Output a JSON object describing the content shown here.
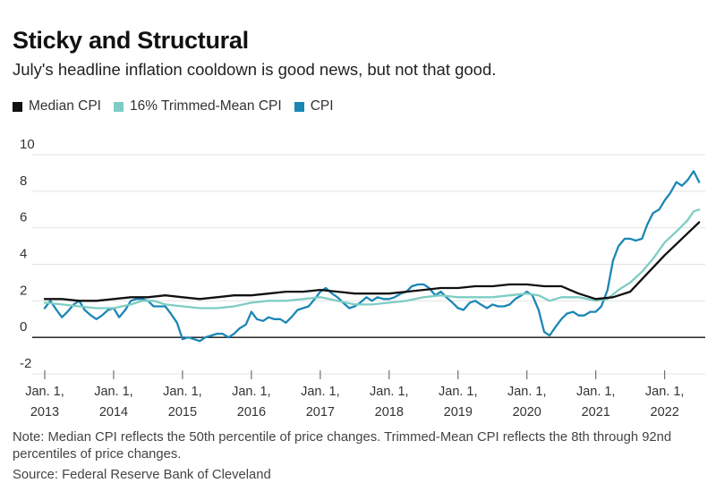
{
  "chart_data": {
    "type": "line",
    "title": "Sticky and Structural",
    "subtitle": "July's headline inflation cooldown is good news, but not that good.",
    "xlabel": "",
    "ylabel": "",
    "ylim": [
      -2,
      10
    ],
    "yticks": [
      "10",
      "8",
      "6",
      "4",
      "2",
      "0",
      "-2"
    ],
    "ytick_values": [
      10,
      8,
      6,
      4,
      2,
      0,
      -2
    ],
    "xlim": [
      2013.0,
      2022.55
    ],
    "xticks": [
      {
        "line1": "Jan. 1,",
        "line2": "2013",
        "value": 2013
      },
      {
        "line1": "Jan. 1,",
        "line2": "2014",
        "value": 2014
      },
      {
        "line1": "Jan. 1,",
        "line2": "2015",
        "value": 2015
      },
      {
        "line1": "Jan. 1,",
        "line2": "2016",
        "value": 2016
      },
      {
        "line1": "Jan. 1,",
        "line2": "2017",
        "value": 2017
      },
      {
        "line1": "Jan. 1,",
        "line2": "2018",
        "value": 2018
      },
      {
        "line1": "Jan. 1,",
        "line2": "2019",
        "value": 2019
      },
      {
        "line1": "Jan. 1,",
        "line2": "2020",
        "value": 2020
      },
      {
        "line1": "Jan. 1,",
        "line2": "2021",
        "value": 2021
      },
      {
        "line1": "Jan. 1,",
        "line2": "2022",
        "value": 2022
      }
    ],
    "legend_position": "top-left",
    "series": [
      {
        "name": "CPI",
        "legend_label": "CPI",
        "color": "#1a87b5",
        "points": [
          [
            2013.0,
            1.6
          ],
          [
            2013.08,
            2.0
          ],
          [
            2013.17,
            1.5
          ],
          [
            2013.25,
            1.1
          ],
          [
            2013.33,
            1.4
          ],
          [
            2013.42,
            1.8
          ],
          [
            2013.5,
            2.0
          ],
          [
            2013.58,
            1.5
          ],
          [
            2013.67,
            1.2
          ],
          [
            2013.75,
            1.0
          ],
          [
            2013.83,
            1.2
          ],
          [
            2013.92,
            1.5
          ],
          [
            2014.0,
            1.6
          ],
          [
            2014.08,
            1.1
          ],
          [
            2014.17,
            1.5
          ],
          [
            2014.25,
            2.0
          ],
          [
            2014.33,
            2.1
          ],
          [
            2014.42,
            2.1
          ],
          [
            2014.5,
            2.0
          ],
          [
            2014.58,
            1.7
          ],
          [
            2014.67,
            1.7
          ],
          [
            2014.75,
            1.7
          ],
          [
            2014.83,
            1.3
          ],
          [
            2014.92,
            0.8
          ],
          [
            2015.0,
            -0.1
          ],
          [
            2015.08,
            0.0
          ],
          [
            2015.17,
            -0.1
          ],
          [
            2015.25,
            -0.2
          ],
          [
            2015.33,
            0.0
          ],
          [
            2015.42,
            0.1
          ],
          [
            2015.5,
            0.2
          ],
          [
            2015.58,
            0.2
          ],
          [
            2015.67,
            0.0
          ],
          [
            2015.75,
            0.2
          ],
          [
            2015.83,
            0.5
          ],
          [
            2015.92,
            0.7
          ],
          [
            2016.0,
            1.4
          ],
          [
            2016.08,
            1.0
          ],
          [
            2016.17,
            0.9
          ],
          [
            2016.25,
            1.1
          ],
          [
            2016.33,
            1.0
          ],
          [
            2016.42,
            1.0
          ],
          [
            2016.5,
            0.8
          ],
          [
            2016.58,
            1.1
          ],
          [
            2016.67,
            1.5
          ],
          [
            2016.75,
            1.6
          ],
          [
            2016.83,
            1.7
          ],
          [
            2016.92,
            2.1
          ],
          [
            2017.0,
            2.5
          ],
          [
            2017.08,
            2.7
          ],
          [
            2017.17,
            2.4
          ],
          [
            2017.25,
            2.2
          ],
          [
            2017.33,
            1.9
          ],
          [
            2017.42,
            1.6
          ],
          [
            2017.5,
            1.7
          ],
          [
            2017.58,
            1.9
          ],
          [
            2017.67,
            2.2
          ],
          [
            2017.75,
            2.0
          ],
          [
            2017.83,
            2.2
          ],
          [
            2017.92,
            2.1
          ],
          [
            2018.0,
            2.1
          ],
          [
            2018.08,
            2.2
          ],
          [
            2018.17,
            2.4
          ],
          [
            2018.25,
            2.5
          ],
          [
            2018.33,
            2.8
          ],
          [
            2018.42,
            2.9
          ],
          [
            2018.5,
            2.9
          ],
          [
            2018.58,
            2.7
          ],
          [
            2018.67,
            2.3
          ],
          [
            2018.75,
            2.5
          ],
          [
            2018.83,
            2.2
          ],
          [
            2018.92,
            1.9
          ],
          [
            2019.0,
            1.6
          ],
          [
            2019.08,
            1.5
          ],
          [
            2019.17,
            1.9
          ],
          [
            2019.25,
            2.0
          ],
          [
            2019.33,
            1.8
          ],
          [
            2019.42,
            1.6
          ],
          [
            2019.5,
            1.8
          ],
          [
            2019.58,
            1.7
          ],
          [
            2019.67,
            1.7
          ],
          [
            2019.75,
            1.8
          ],
          [
            2019.83,
            2.1
          ],
          [
            2019.92,
            2.3
          ],
          [
            2020.0,
            2.5
          ],
          [
            2020.08,
            2.3
          ],
          [
            2020.17,
            1.5
          ],
          [
            2020.25,
            0.3
          ],
          [
            2020.33,
            0.1
          ],
          [
            2020.42,
            0.6
          ],
          [
            2020.5,
            1.0
          ],
          [
            2020.58,
            1.3
          ],
          [
            2020.67,
            1.4
          ],
          [
            2020.75,
            1.2
          ],
          [
            2020.83,
            1.2
          ],
          [
            2020.92,
            1.4
          ],
          [
            2021.0,
            1.4
          ],
          [
            2021.08,
            1.7
          ],
          [
            2021.17,
            2.6
          ],
          [
            2021.25,
            4.2
          ],
          [
            2021.33,
            5.0
          ],
          [
            2021.42,
            5.4
          ],
          [
            2021.5,
            5.4
          ],
          [
            2021.58,
            5.3
          ],
          [
            2021.67,
            5.4
          ],
          [
            2021.75,
            6.2
          ],
          [
            2021.83,
            6.8
          ],
          [
            2021.92,
            7.0
          ],
          [
            2022.0,
            7.5
          ],
          [
            2022.08,
            7.9
          ],
          [
            2022.17,
            8.5
          ],
          [
            2022.25,
            8.3
          ],
          [
            2022.33,
            8.6
          ],
          [
            2022.42,
            9.1
          ],
          [
            2022.5,
            8.5
          ]
        ]
      },
      {
        "name": "16% Trimmed-Mean CPI",
        "legend_label": "16% Trimmed-Mean CPI",
        "color": "#7ecdc4",
        "points": [
          [
            2013.0,
            1.9
          ],
          [
            2013.25,
            1.8
          ],
          [
            2013.5,
            1.7
          ],
          [
            2013.75,
            1.6
          ],
          [
            2014.0,
            1.6
          ],
          [
            2014.25,
            1.8
          ],
          [
            2014.42,
            2.0
          ],
          [
            2014.58,
            2.0
          ],
          [
            2014.75,
            1.8
          ],
          [
            2015.0,
            1.7
          ],
          [
            2015.25,
            1.6
          ],
          [
            2015.5,
            1.6
          ],
          [
            2015.75,
            1.7
          ],
          [
            2016.0,
            1.9
          ],
          [
            2016.25,
            2.0
          ],
          [
            2016.5,
            2.0
          ],
          [
            2016.75,
            2.1
          ],
          [
            2017.0,
            2.2
          ],
          [
            2017.25,
            2.0
          ],
          [
            2017.5,
            1.8
          ],
          [
            2017.75,
            1.8
          ],
          [
            2018.0,
            1.9
          ],
          [
            2018.25,
            2.0
          ],
          [
            2018.5,
            2.2
          ],
          [
            2018.75,
            2.3
          ],
          [
            2019.0,
            2.2
          ],
          [
            2019.25,
            2.2
          ],
          [
            2019.5,
            2.2
          ],
          [
            2019.75,
            2.3
          ],
          [
            2020.0,
            2.4
          ],
          [
            2020.17,
            2.3
          ],
          [
            2020.33,
            2.0
          ],
          [
            2020.5,
            2.2
          ],
          [
            2020.75,
            2.2
          ],
          [
            2021.0,
            2.0
          ],
          [
            2021.17,
            2.1
          ],
          [
            2021.33,
            2.6
          ],
          [
            2021.5,
            3.0
          ],
          [
            2021.67,
            3.6
          ],
          [
            2021.83,
            4.3
          ],
          [
            2022.0,
            5.2
          ],
          [
            2022.17,
            5.8
          ],
          [
            2022.33,
            6.4
          ],
          [
            2022.42,
            6.9
          ],
          [
            2022.5,
            7.0
          ]
        ]
      },
      {
        "name": "Median CPI",
        "legend_label": "Median CPI",
        "color": "#111111",
        "points": [
          [
            2013.0,
            2.1
          ],
          [
            2013.25,
            2.1
          ],
          [
            2013.5,
            2.0
          ],
          [
            2013.75,
            2.0
          ],
          [
            2014.0,
            2.1
          ],
          [
            2014.25,
            2.2
          ],
          [
            2014.5,
            2.2
          ],
          [
            2014.75,
            2.3
          ],
          [
            2015.0,
            2.2
          ],
          [
            2015.25,
            2.1
          ],
          [
            2015.5,
            2.2
          ],
          [
            2015.75,
            2.3
          ],
          [
            2016.0,
            2.3
          ],
          [
            2016.25,
            2.4
          ],
          [
            2016.5,
            2.5
          ],
          [
            2016.75,
            2.5
          ],
          [
            2017.0,
            2.6
          ],
          [
            2017.25,
            2.5
          ],
          [
            2017.5,
            2.4
          ],
          [
            2017.75,
            2.4
          ],
          [
            2018.0,
            2.4
          ],
          [
            2018.25,
            2.5
          ],
          [
            2018.5,
            2.6
          ],
          [
            2018.75,
            2.7
          ],
          [
            2019.0,
            2.7
          ],
          [
            2019.25,
            2.8
          ],
          [
            2019.5,
            2.8
          ],
          [
            2019.75,
            2.9
          ],
          [
            2020.0,
            2.9
          ],
          [
            2020.25,
            2.8
          ],
          [
            2020.5,
            2.8
          ],
          [
            2020.75,
            2.4
          ],
          [
            2021.0,
            2.1
          ],
          [
            2021.25,
            2.2
          ],
          [
            2021.5,
            2.5
          ],
          [
            2021.75,
            3.5
          ],
          [
            2022.0,
            4.5
          ],
          [
            2022.25,
            5.4
          ],
          [
            2022.5,
            6.3
          ]
        ]
      }
    ],
    "legend_order": [
      "Median CPI",
      "16% Trimmed-Mean CPI",
      "CPI"
    ]
  },
  "note": "Note: Median CPI reflects the 50th percentile of price changes. Trimmed-Mean CPI reflects the 8th through 92nd percentiles of price changes.",
  "source": "Source: Federal Reserve Bank of Cleveland"
}
